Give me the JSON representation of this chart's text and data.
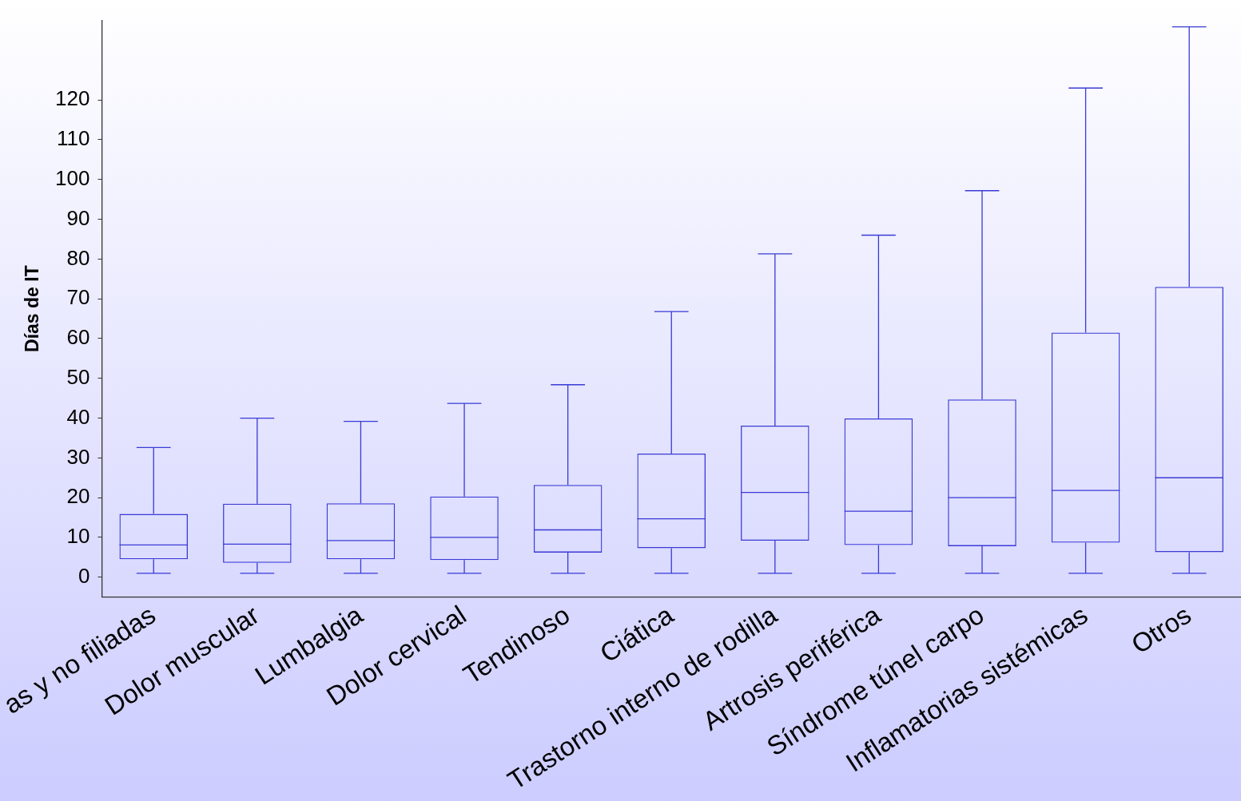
{
  "chart_data": {
    "type": "box",
    "ylabel": "Días de IT",
    "categories": [
      "as y no filiadas",
      "Dolor muscular",
      "Lumbalgia",
      "Dolor cervical",
      "Tendinoso",
      "Ciática",
      "Trastorno interno de rodilla",
      "Artrosis periférica",
      "Síndrome túnel carpo",
      "Inflamatorias sistémicas",
      "Otros"
    ],
    "series": [
      {
        "color": "#3a3ad6",
        "boxes": [
          {
            "low": 1,
            "q1": 4.5,
            "median": 8.1,
            "q3": 15.9,
            "high": 32.6
          },
          {
            "low": 1,
            "q1": 3.6,
            "median": 8.3,
            "q3": 18.5,
            "high": 40
          },
          {
            "low": 1,
            "q1": 4.5,
            "median": 9.2,
            "q3": 18.6,
            "high": 39.2
          },
          {
            "low": 1,
            "q1": 4.3,
            "median": 10,
            "q3": 20.3,
            "high": 43.7
          },
          {
            "low": 1,
            "q1": 6.2,
            "median": 11.9,
            "q3": 23.2,
            "high": 48.4
          },
          {
            "low": 1,
            "q1": 7.3,
            "median": 14.7,
            "q3": 31.1,
            "high": 66.8
          },
          {
            "low": 1,
            "q1": 9.2,
            "median": 21.3,
            "q3": 38.1,
            "high": 81.3
          },
          {
            "low": 1,
            "q1": 8.1,
            "median": 16.6,
            "q3": 39.9,
            "high": 86
          },
          {
            "low": 1,
            "q1": 7.8,
            "median": 20,
            "q3": 44.7,
            "high": 97.2
          },
          {
            "low": 1,
            "q1": 8.7,
            "median": 21.8,
            "q3": 61.5,
            "high": 123
          },
          {
            "low": 1,
            "q1": 6.3,
            "median": 25,
            "q3": 73,
            "high": 138.4
          }
        ]
      }
    ],
    "ylim": [
      -5,
      140
    ],
    "yticks": [
      0,
      10,
      20,
      30,
      40,
      50,
      60,
      70,
      80,
      90,
      100,
      110,
      120
    ],
    "grid": false,
    "legend": false
  }
}
